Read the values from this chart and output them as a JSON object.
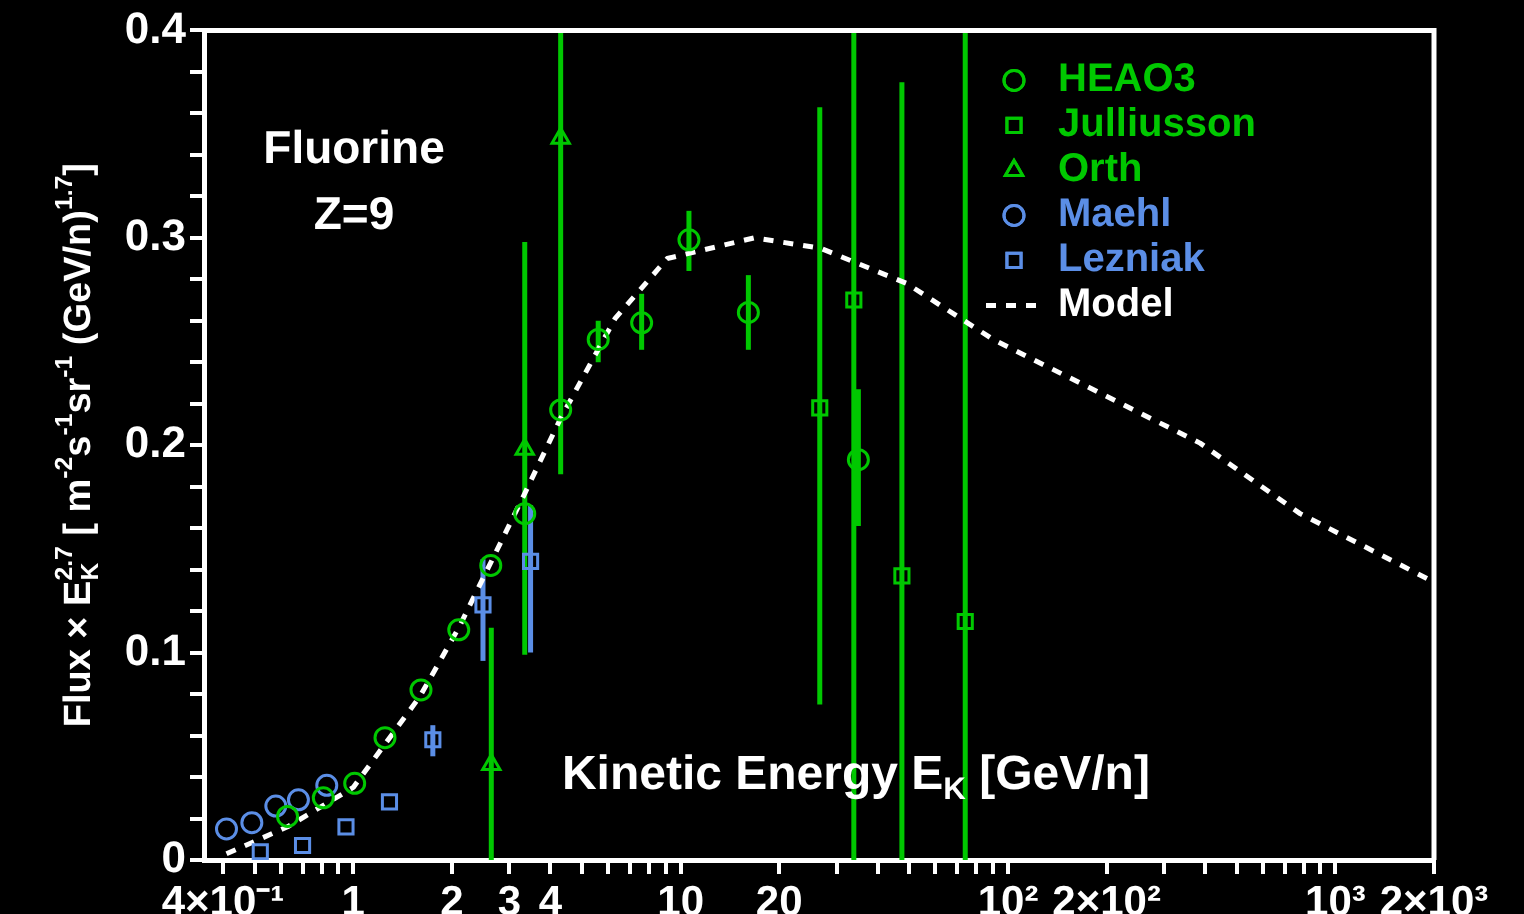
{
  "chart_data": {
    "type": "scatter",
    "xlabel": "Kinetic Energy E$_{K}$ [GeV/n]",
    "ylabel": "Flux × E$_{K}$$^{2.7}$ [ m$^{-2}$s$^{-1}$sr$^{-1}$ (GeV/n)$^{1.7}$]",
    "annotations": [
      "Fluorine",
      "Z=9"
    ],
    "log": "x",
    "legend": "top right",
    "xlim": [
      0.35,
      2000
    ],
    "xticks": [
      {
        "value": 0.4,
        "label": "4×10⁻¹"
      },
      {
        "value": 0.5,
        "label": null
      },
      {
        "value": 0.6,
        "label": null
      },
      {
        "value": 0.7,
        "label": null
      },
      {
        "value": 0.8,
        "label": null
      },
      {
        "value": 0.9,
        "label": null
      },
      1,
      2,
      3,
      4,
      {
        "value": 5,
        "label": null
      },
      {
        "value": 6,
        "label": null
      },
      {
        "value": 7,
        "label": null
      },
      {
        "value": 8,
        "label": null
      },
      {
        "value": 9,
        "label": null
      },
      10,
      20,
      {
        "value": 30,
        "label": null
      },
      {
        "value": 40,
        "label": null
      },
      {
        "value": 50,
        "label": null
      },
      {
        "value": 60,
        "label": null
      },
      {
        "value": 70,
        "label": null
      },
      {
        "value": 80,
        "label": null
      },
      {
        "value": 90,
        "label": null
      },
      {
        "value": 100,
        "label": "10²"
      },
      {
        "value": 200,
        "label": "2×10²"
      },
      {
        "value": 300,
        "label": null
      },
      {
        "value": 400,
        "label": null
      },
      {
        "value": 500,
        "label": null
      },
      {
        "value": 600,
        "label": null
      },
      {
        "value": 700,
        "label": null
      },
      {
        "value": 800,
        "label": null
      },
      {
        "value": 900,
        "label": null
      },
      {
        "value": 1000,
        "label": "10³"
      },
      {
        "value": 2000,
        "label": "2×10³"
      }
    ],
    "ylim": [
      0,
      0.4
    ],
    "yticks": [
      0,
      {
        "value": 0.02,
        "label": null
      },
      {
        "value": 0.04,
        "label": null
      },
      {
        "value": 0.06,
        "label": null
      },
      {
        "value": 0.08,
        "label": null
      },
      0.1,
      {
        "value": 0.12,
        "label": null
      },
      {
        "value": 0.14,
        "label": null
      },
      {
        "value": 0.16,
        "label": null
      },
      {
        "value": 0.18,
        "label": null
      },
      0.2,
      {
        "value": 0.22,
        "label": null
      },
      {
        "value": 0.24,
        "label": null
      },
      {
        "value": 0.26,
        "label": null
      },
      {
        "value": 0.28,
        "label": null
      },
      0.3,
      {
        "value": 0.32,
        "label": null
      },
      {
        "value": 0.34,
        "label": null
      },
      {
        "value": 0.36,
        "label": null
      },
      {
        "value": 0.38,
        "label": null
      },
      0.4
    ],
    "series": [
      {
        "name": "HEAO3",
        "type": "scatter",
        "marker": "circle",
        "color": "#00c800",
        "x": [
          0.63,
          0.81,
          1.01,
          1.25,
          1.61,
          2.1,
          2.63,
          3.34,
          4.3,
          5.6,
          7.6,
          10.6,
          16.1,
          34.9
        ],
        "values": [
          0.021,
          0.03,
          0.037,
          0.059,
          0.082,
          0.111,
          0.142,
          0.167,
          0.217,
          0.251,
          0.259,
          0.299,
          0.264,
          0.193
        ],
        "errors": [
          null,
          null,
          null,
          null,
          null,
          null,
          null,
          null,
          null,
          [
            0.24,
            0.26
          ],
          [
            0.246,
            0.273
          ],
          [
            0.284,
            0.313
          ],
          [
            0.246,
            0.282
          ],
          [
            0.161,
            0.227
          ]
        ]
      },
      {
        "name": "Julliusson",
        "type": "scatter",
        "marker": "square",
        "color": "#00c800",
        "x": [
          26.6,
          33.8,
          47.4,
          74
        ],
        "values": [
          0.218,
          0.27,
          0.137,
          0.115
        ],
        "errors": [
          [
            0.075,
            0.363
          ],
          [
            0,
            0.4
          ],
          [
            0,
            0.375
          ],
          [
            0,
            0.4
          ]
        ]
      },
      {
        "name": "Orth",
        "type": "scatter",
        "marker": "triangle",
        "color": "#00c800",
        "x": [
          2.64,
          3.34,
          4.3
        ],
        "values": [
          0.046,
          0.198,
          0.348
        ],
        "errors": [
          [
            0,
            0.112
          ],
          [
            0.099,
            0.298
          ],
          [
            0.186,
            0.4
          ]
        ]
      },
      {
        "name": "Maehl",
        "type": "scatter",
        "marker": "circle",
        "color": "#5b8ee6",
        "x": [
          0.41,
          0.49,
          0.58,
          0.68,
          0.83
        ],
        "values": [
          0.015,
          0.018,
          0.026,
          0.029,
          0.036
        ]
      },
      {
        "name": "Lezniak",
        "type": "scatter",
        "marker": "square",
        "color": "#5b8ee6",
        "x": [
          0.52,
          0.7,
          0.95,
          1.29,
          1.75,
          2.49,
          3.48
        ],
        "values": [
          0.004,
          0.007,
          0.016,
          0.028,
          0.058,
          0.123,
          0.144
        ],
        "errors": [
          null,
          null,
          null,
          null,
          [
            0.05,
            0.065
          ],
          [
            0.096,
            0.145
          ],
          [
            0.1,
            0.171
          ]
        ]
      },
      {
        "name": "Model",
        "type": "line",
        "marker": "none",
        "line_style": "dashed",
        "color": "#ffffff",
        "x": [
          0.41,
          0.63,
          1.0,
          1.6,
          2.1,
          3.3,
          4.3,
          6.3,
          9.1,
          16.8,
          26.7,
          49,
          90,
          386,
          780,
          2000
        ],
        "values": [
          0.003,
          0.016,
          0.035,
          0.079,
          0.112,
          0.175,
          0.213,
          0.261,
          0.29,
          0.3,
          0.295,
          0.278,
          0.251,
          0.201,
          0.167,
          0.134
        ]
      }
    ]
  }
}
